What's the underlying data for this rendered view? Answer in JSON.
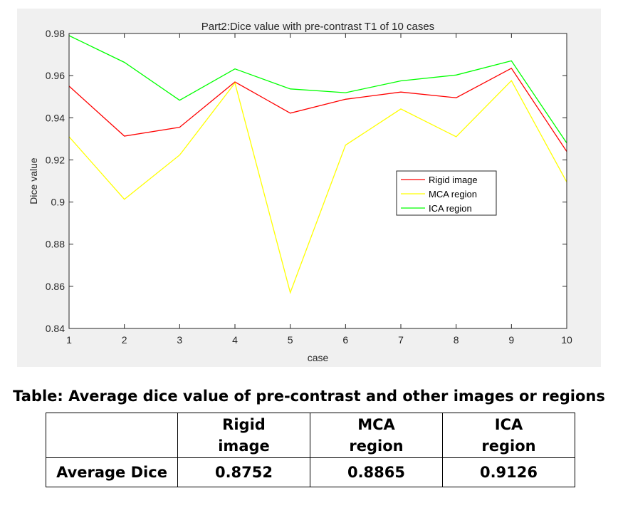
{
  "chart_data": {
    "type": "line",
    "title": "Part2:Dice value with pre-contrast T1 of 10 cases",
    "xlabel": "case",
    "ylabel": "Dice value",
    "xlim": [
      1,
      10
    ],
    "ylim": [
      0.84,
      0.98
    ],
    "x": [
      1,
      2,
      3,
      4,
      5,
      6,
      7,
      8,
      9,
      10
    ],
    "x_ticks": [
      "1",
      "2",
      "3",
      "4",
      "5",
      "6",
      "7",
      "8",
      "9",
      "10"
    ],
    "y_ticks": [
      0.84,
      0.86,
      0.88,
      0.9,
      0.92,
      0.94,
      0.96,
      0.98
    ],
    "y_tick_labels": [
      "0.84",
      "0.86",
      "0.88",
      "0.9",
      "0.92",
      "0.94",
      "0.96",
      "0.98"
    ],
    "grid": false,
    "legend_position": "right-middle",
    "series": [
      {
        "name": "Rigid image",
        "color": "#ff0000",
        "values": [
          0.955,
          0.9313,
          0.9355,
          0.957,
          0.9422,
          0.9488,
          0.9522,
          0.9495,
          0.9635,
          0.924
        ]
      },
      {
        "name": "MCA region",
        "color": "#ffff00",
        "values": [
          0.931,
          0.9013,
          0.9223,
          0.9565,
          0.857,
          0.927,
          0.9442,
          0.931,
          0.9576,
          0.9095
        ]
      },
      {
        "name": "ICA region",
        "color": "#00ff00",
        "values": [
          0.979,
          0.9663,
          0.9483,
          0.9632,
          0.9537,
          0.9519,
          0.9575,
          0.9603,
          0.967,
          0.928
        ]
      }
    ]
  },
  "table": {
    "caption": "Table: Average dice value of pre-contrast and other images or regions",
    "headers": [
      "",
      "Rigid\nimage",
      "MCA\nregion",
      "ICA\nregion"
    ],
    "header_lines": [
      [
        "Rigid",
        "image"
      ],
      [
        "MCA",
        "region"
      ],
      [
        "ICA",
        "region"
      ]
    ],
    "row_label": "Average Dice",
    "row_values": [
      "0.8752",
      "0.8865",
      "0.9126"
    ]
  }
}
